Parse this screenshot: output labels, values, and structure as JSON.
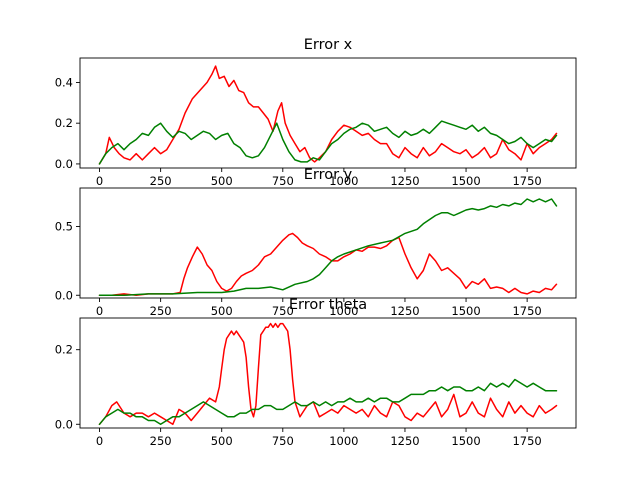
{
  "chart_data": [
    {
      "type": "line",
      "title": "Error x",
      "xlim": [
        -80,
        1950
      ],
      "ylim": [
        -0.02,
        0.52
      ],
      "xticks": [
        "0",
        "250",
        "500",
        "750",
        "1000",
        "1250",
        "1500",
        "1750"
      ],
      "yticks": [
        "0.0",
        "0.2",
        "0.4"
      ],
      "series": [
        {
          "color": "#ff0000",
          "x": [
            0,
            25,
            40,
            60,
            80,
            100,
            125,
            150,
            175,
            200,
            225,
            250,
            275,
            300,
            325,
            350,
            380,
            410,
            440,
            460,
            475,
            490,
            510,
            530,
            550,
            570,
            590,
            610,
            630,
            650,
            670,
            690,
            710,
            730,
            745,
            760,
            780,
            800,
            820,
            840,
            860,
            880,
            900,
            925,
            950,
            975,
            1000,
            1025,
            1050,
            1075,
            1100,
            1125,
            1150,
            1175,
            1200,
            1225,
            1250,
            1275,
            1300,
            1325,
            1350,
            1375,
            1400,
            1425,
            1450,
            1475,
            1500,
            1525,
            1550,
            1575,
            1600,
            1625,
            1650,
            1675,
            1700,
            1725,
            1750,
            1775,
            1800,
            1825,
            1850,
            1870
          ],
          "y": [
            0.0,
            0.05,
            0.13,
            0.08,
            0.05,
            0.03,
            0.02,
            0.05,
            0.02,
            0.05,
            0.08,
            0.05,
            0.07,
            0.12,
            0.17,
            0.25,
            0.32,
            0.36,
            0.4,
            0.44,
            0.48,
            0.42,
            0.43,
            0.38,
            0.41,
            0.36,
            0.35,
            0.3,
            0.28,
            0.28,
            0.25,
            0.22,
            0.16,
            0.26,
            0.3,
            0.2,
            0.14,
            0.1,
            0.06,
            0.08,
            0.03,
            0.01,
            0.03,
            0.06,
            0.12,
            0.16,
            0.19,
            0.18,
            0.16,
            0.14,
            0.15,
            0.12,
            0.1,
            0.1,
            0.05,
            0.03,
            0.08,
            0.05,
            0.03,
            0.08,
            0.04,
            0.06,
            0.1,
            0.08,
            0.06,
            0.05,
            0.07,
            0.03,
            0.05,
            0.08,
            0.03,
            0.05,
            0.12,
            0.07,
            0.05,
            0.02,
            0.1,
            0.05,
            0.08,
            0.1,
            0.12,
            0.15
          ]
        },
        {
          "color": "#008000",
          "x": [
            0,
            25,
            50,
            75,
            100,
            125,
            150,
            175,
            200,
            225,
            250,
            275,
            300,
            325,
            350,
            375,
            400,
            425,
            450,
            475,
            500,
            525,
            550,
            575,
            600,
            625,
            650,
            675,
            700,
            725,
            750,
            775,
            800,
            825,
            850,
            875,
            900,
            925,
            950,
            975,
            1000,
            1025,
            1050,
            1075,
            1100,
            1125,
            1150,
            1175,
            1200,
            1225,
            1250,
            1275,
            1300,
            1325,
            1350,
            1375,
            1400,
            1425,
            1450,
            1475,
            1500,
            1525,
            1550,
            1575,
            1600,
            1625,
            1650,
            1675,
            1700,
            1725,
            1750,
            1775,
            1800,
            1825,
            1850,
            1870
          ],
          "y": [
            0.0,
            0.05,
            0.08,
            0.1,
            0.07,
            0.1,
            0.12,
            0.15,
            0.14,
            0.18,
            0.2,
            0.16,
            0.13,
            0.16,
            0.15,
            0.12,
            0.14,
            0.16,
            0.15,
            0.12,
            0.14,
            0.15,
            0.1,
            0.08,
            0.04,
            0.03,
            0.04,
            0.08,
            0.14,
            0.2,
            0.12,
            0.06,
            0.02,
            0.01,
            0.01,
            0.03,
            0.02,
            0.06,
            0.1,
            0.12,
            0.15,
            0.17,
            0.18,
            0.2,
            0.19,
            0.16,
            0.17,
            0.18,
            0.15,
            0.13,
            0.16,
            0.14,
            0.15,
            0.17,
            0.15,
            0.18,
            0.21,
            0.2,
            0.19,
            0.18,
            0.17,
            0.19,
            0.16,
            0.18,
            0.15,
            0.14,
            0.12,
            0.1,
            0.11,
            0.13,
            0.1,
            0.08,
            0.1,
            0.12,
            0.11,
            0.14
          ]
        }
      ]
    },
    {
      "type": "line",
      "title": "Error y",
      "xlim": [
        -80,
        1950
      ],
      "ylim": [
        -0.02,
        0.78
      ],
      "xticks": [
        "0",
        "250",
        "500",
        "750",
        "1000",
        "1250",
        "1500",
        "1750"
      ],
      "yticks": [
        "0.0",
        "0.5"
      ],
      "series": [
        {
          "color": "#ff0000",
          "x": [
            0,
            50,
            100,
            150,
            200,
            250,
            300,
            330,
            345,
            360,
            380,
            400,
            420,
            440,
            460,
            480,
            500,
            520,
            540,
            560,
            580,
            600,
            625,
            650,
            675,
            700,
            725,
            750,
            775,
            790,
            810,
            830,
            850,
            875,
            900,
            925,
            950,
            975,
            1000,
            1025,
            1050,
            1075,
            1100,
            1125,
            1150,
            1175,
            1200,
            1225,
            1250,
            1275,
            1300,
            1325,
            1350,
            1375,
            1400,
            1425,
            1450,
            1475,
            1500,
            1525,
            1550,
            1575,
            1600,
            1625,
            1650,
            1675,
            1700,
            1725,
            1750,
            1775,
            1800,
            1825,
            1850,
            1870
          ],
          "y": [
            0.0,
            0.0,
            0.01,
            0.0,
            0.01,
            0.01,
            0.01,
            0.02,
            0.12,
            0.2,
            0.28,
            0.35,
            0.3,
            0.22,
            0.18,
            0.1,
            0.05,
            0.03,
            0.05,
            0.1,
            0.14,
            0.16,
            0.18,
            0.22,
            0.28,
            0.3,
            0.35,
            0.4,
            0.44,
            0.45,
            0.42,
            0.38,
            0.36,
            0.34,
            0.3,
            0.28,
            0.25,
            0.25,
            0.28,
            0.3,
            0.33,
            0.32,
            0.35,
            0.35,
            0.34,
            0.36,
            0.4,
            0.42,
            0.3,
            0.2,
            0.12,
            0.18,
            0.3,
            0.25,
            0.18,
            0.2,
            0.16,
            0.12,
            0.05,
            0.1,
            0.08,
            0.12,
            0.05,
            0.06,
            0.05,
            0.02,
            0.05,
            0.02,
            0.01,
            0.03,
            0.02,
            0.05,
            0.04,
            0.08
          ]
        },
        {
          "color": "#008000",
          "x": [
            0,
            100,
            200,
            300,
            400,
            500,
            550,
            600,
            650,
            700,
            750,
            800,
            850,
            875,
            900,
            925,
            950,
            975,
            1000,
            1050,
            1100,
            1150,
            1200,
            1250,
            1300,
            1325,
            1350,
            1375,
            1400,
            1425,
            1450,
            1475,
            1500,
            1525,
            1550,
            1575,
            1600,
            1625,
            1650,
            1675,
            1700,
            1725,
            1750,
            1775,
            1800,
            1825,
            1850,
            1870
          ],
          "y": [
            0.0,
            0.0,
            0.01,
            0.01,
            0.02,
            0.02,
            0.03,
            0.05,
            0.05,
            0.06,
            0.04,
            0.08,
            0.1,
            0.12,
            0.15,
            0.2,
            0.25,
            0.28,
            0.3,
            0.33,
            0.36,
            0.38,
            0.4,
            0.45,
            0.48,
            0.52,
            0.55,
            0.58,
            0.6,
            0.6,
            0.58,
            0.6,
            0.62,
            0.63,
            0.62,
            0.63,
            0.65,
            0.64,
            0.66,
            0.65,
            0.67,
            0.66,
            0.7,
            0.68,
            0.7,
            0.68,
            0.7,
            0.65
          ]
        }
      ]
    },
    {
      "type": "line",
      "title": "Error theta",
      "xlim": [
        -80,
        1950
      ],
      "ylim": [
        -0.01,
        0.285
      ],
      "xticks": [
        "0",
        "250",
        "500",
        "750",
        "1000",
        "1250",
        "1500",
        "1750"
      ],
      "yticks": [
        "0.0",
        "0.2"
      ],
      "series": [
        {
          "color": "#ff0000",
          "x": [
            0,
            25,
            50,
            70,
            100,
            125,
            150,
            175,
            200,
            225,
            250,
            275,
            300,
            325,
            350,
            375,
            400,
            425,
            450,
            475,
            490,
            500,
            510,
            520,
            530,
            540,
            550,
            560,
            570,
            580,
            590,
            600,
            610,
            620,
            630,
            640,
            650,
            660,
            670,
            680,
            690,
            700,
            710,
            720,
            730,
            740,
            750,
            760,
            770,
            780,
            790,
            800,
            810,
            820,
            830,
            850,
            875,
            900,
            925,
            950,
            975,
            1000,
            1025,
            1050,
            1075,
            1100,
            1125,
            1150,
            1175,
            1200,
            1225,
            1250,
            1275,
            1300,
            1325,
            1350,
            1375,
            1400,
            1425,
            1450,
            1475,
            1500,
            1525,
            1550,
            1575,
            1600,
            1625,
            1650,
            1675,
            1700,
            1725,
            1750,
            1775,
            1800,
            1825,
            1850,
            1870
          ],
          "y": [
            0.0,
            0.02,
            0.05,
            0.06,
            0.03,
            0.02,
            0.03,
            0.03,
            0.02,
            0.03,
            0.02,
            0.01,
            0.0,
            0.04,
            0.03,
            0.01,
            0.03,
            0.05,
            0.07,
            0.06,
            0.1,
            0.15,
            0.2,
            0.23,
            0.24,
            0.25,
            0.24,
            0.25,
            0.24,
            0.23,
            0.22,
            0.18,
            0.1,
            0.04,
            0.02,
            0.05,
            0.15,
            0.24,
            0.25,
            0.26,
            0.26,
            0.27,
            0.26,
            0.27,
            0.26,
            0.27,
            0.27,
            0.26,
            0.25,
            0.2,
            0.12,
            0.06,
            0.04,
            0.02,
            0.03,
            0.05,
            0.06,
            0.02,
            0.03,
            0.04,
            0.03,
            0.05,
            0.04,
            0.03,
            0.04,
            0.02,
            0.05,
            0.03,
            0.02,
            0.06,
            0.05,
            0.02,
            0.01,
            0.03,
            0.02,
            0.04,
            0.06,
            0.02,
            0.04,
            0.08,
            0.02,
            0.03,
            0.06,
            0.03,
            0.02,
            0.07,
            0.04,
            0.02,
            0.06,
            0.03,
            0.05,
            0.03,
            0.02,
            0.05,
            0.03,
            0.04,
            0.05
          ]
        },
        {
          "color": "#008000",
          "x": [
            0,
            25,
            50,
            75,
            100,
            125,
            150,
            175,
            200,
            225,
            250,
            275,
            300,
            325,
            350,
            375,
            400,
            425,
            450,
            475,
            500,
            525,
            550,
            575,
            600,
            625,
            650,
            675,
            700,
            725,
            750,
            775,
            800,
            825,
            850,
            875,
            900,
            925,
            950,
            975,
            1000,
            1025,
            1050,
            1075,
            1100,
            1125,
            1150,
            1175,
            1200,
            1225,
            1250,
            1275,
            1300,
            1325,
            1350,
            1375,
            1400,
            1425,
            1450,
            1475,
            1500,
            1525,
            1550,
            1575,
            1600,
            1625,
            1650,
            1675,
            1700,
            1725,
            1750,
            1775,
            1800,
            1825,
            1850,
            1870
          ],
          "y": [
            0.0,
            0.02,
            0.03,
            0.04,
            0.03,
            0.03,
            0.02,
            0.02,
            0.01,
            0.01,
            0.0,
            0.01,
            0.02,
            0.02,
            0.03,
            0.04,
            0.05,
            0.06,
            0.05,
            0.04,
            0.03,
            0.02,
            0.02,
            0.03,
            0.03,
            0.04,
            0.04,
            0.05,
            0.05,
            0.04,
            0.04,
            0.05,
            0.06,
            0.05,
            0.05,
            0.06,
            0.05,
            0.06,
            0.05,
            0.06,
            0.06,
            0.07,
            0.06,
            0.06,
            0.07,
            0.06,
            0.07,
            0.07,
            0.06,
            0.06,
            0.07,
            0.08,
            0.08,
            0.08,
            0.09,
            0.09,
            0.1,
            0.09,
            0.1,
            0.1,
            0.09,
            0.09,
            0.1,
            0.09,
            0.11,
            0.1,
            0.11,
            0.1,
            0.12,
            0.11,
            0.1,
            0.11,
            0.1,
            0.09,
            0.09,
            0.09
          ]
        }
      ]
    }
  ]
}
